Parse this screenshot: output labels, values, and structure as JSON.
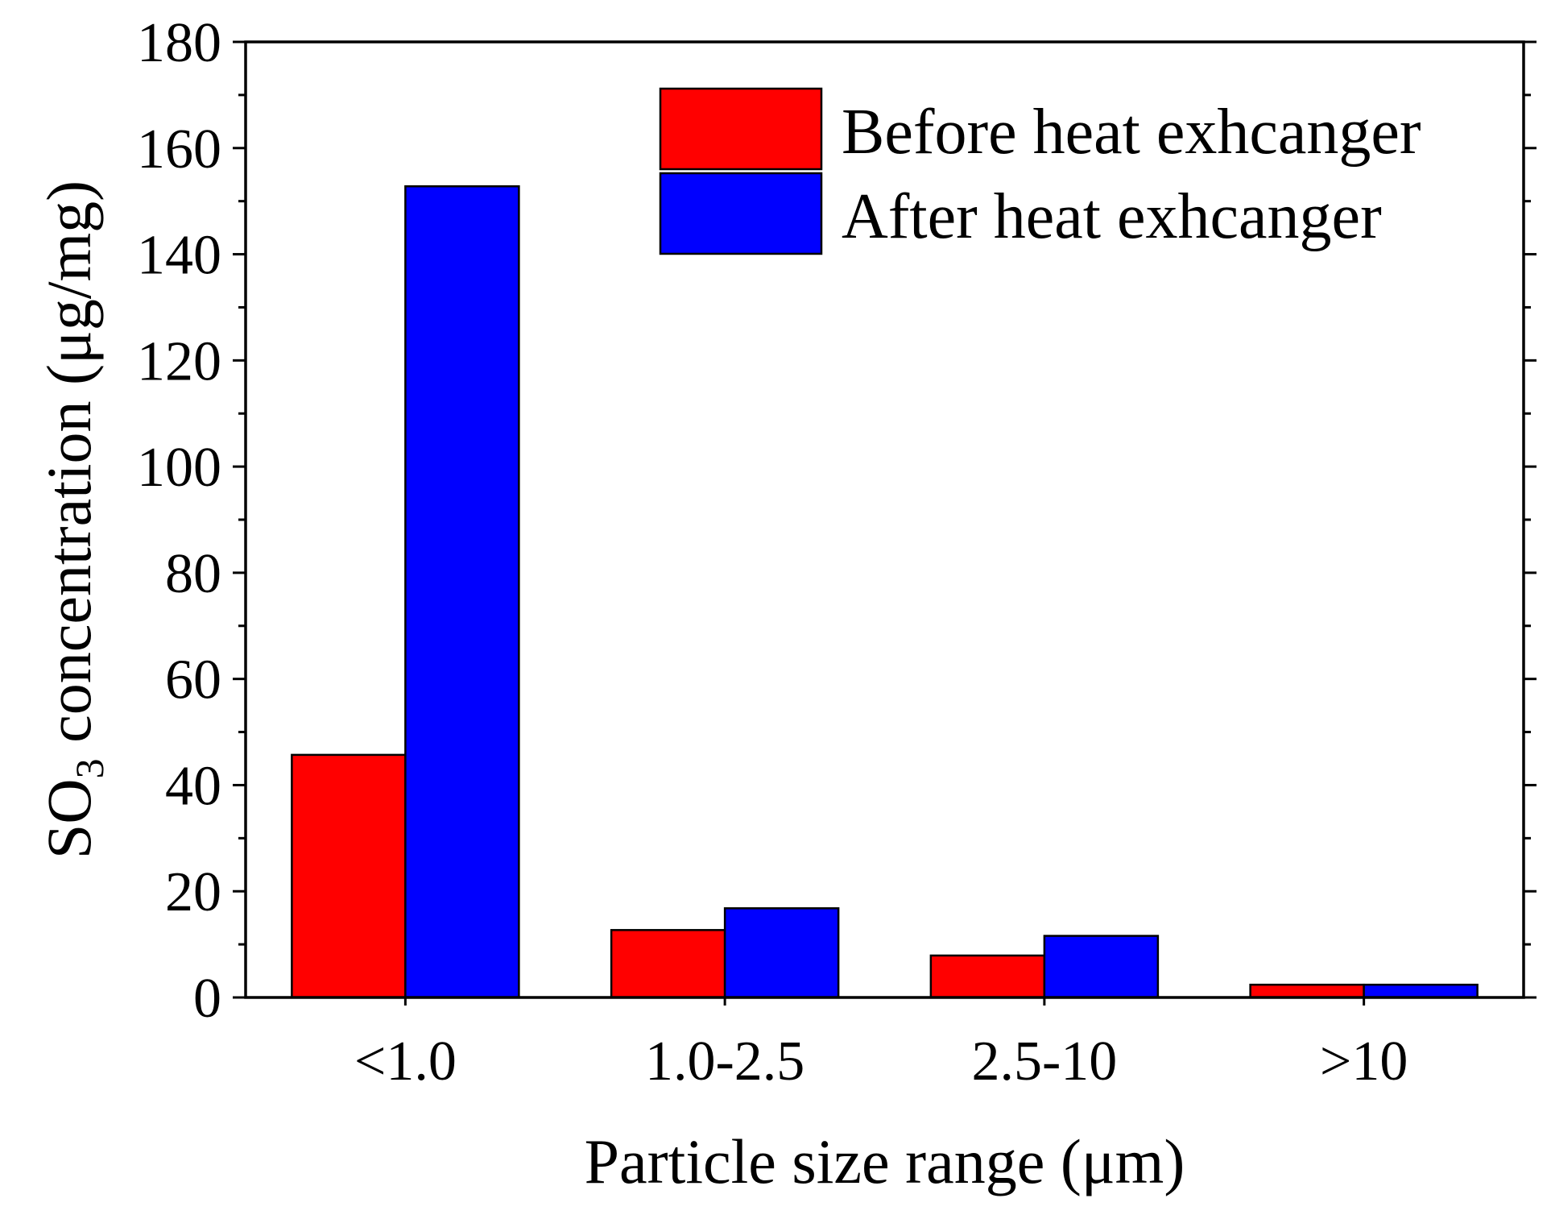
{
  "chart_data": {
    "type": "bar",
    "categories": [
      "<1.0",
      "1.0-2.5",
      "2.5-10",
      ">10"
    ],
    "series": [
      {
        "name": "Before heat exhcanger",
        "color": "#ff0000",
        "values": [
          45.7,
          12.7,
          7.9,
          2.4
        ]
      },
      {
        "name": "After heat exhcanger",
        "color": "#0000ff",
        "values": [
          152.8,
          16.8,
          11.6,
          2.4
        ]
      }
    ],
    "title": "",
    "xlabel": "Particle size range (μm)",
    "ylabel_main": "SO",
    "ylabel_sub": "3",
    "ylabel_rest": " concentration (μg/mg)",
    "ylim": [
      0,
      180
    ],
    "yticks": [
      "0",
      "20",
      "40",
      "60",
      "80",
      "100",
      "120",
      "140",
      "160",
      "180"
    ],
    "ytick_values": [
      0,
      20,
      40,
      60,
      80,
      100,
      120,
      140,
      160,
      180
    ],
    "yminor_step": 10,
    "legend_position": "top-right",
    "grid": false
  }
}
